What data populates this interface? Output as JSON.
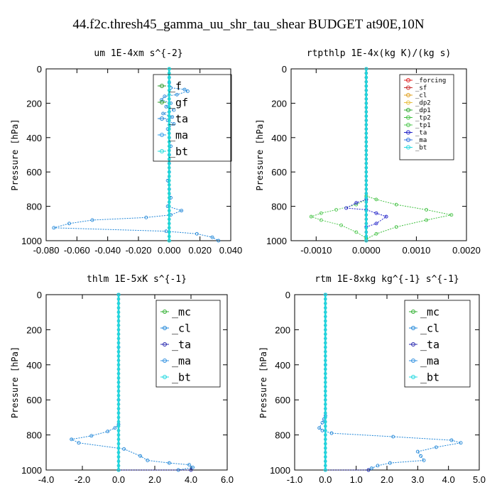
{
  "figure_title": "44.f2c.thresh45_gamma_uu_shr_tau_shear  BUDGET at90E,10N",
  "chart_data": [
    {
      "type": "line",
      "title": "um   1E-4xm s^{-2}",
      "ylabel": "Pressure [hPa]",
      "xlim": [
        -0.08,
        0.04
      ],
      "ylim": [
        1000,
        0
      ],
      "xticks": [
        -0.08,
        -0.06,
        -0.04,
        -0.02,
        0.0,
        0.02,
        0.04
      ],
      "xtick_labels": [
        "-0.080",
        "-0.060",
        "-0.040",
        "-0.020",
        "0.000",
        "0.020",
        "0.040"
      ],
      "yticks": [
        0,
        200,
        400,
        600,
        800,
        1000
      ],
      "ytick_labels": [
        "0",
        "200",
        "400",
        "600",
        "800",
        "1000"
      ],
      "legend": [
        "_f",
        "_gf",
        "_ta",
        "_ma",
        "_bt"
      ],
      "legend_placement": "top-right",
      "series": [
        {
          "name": "_f",
          "color": "#2b9c2b",
          "x": [
            0.0,
            0.0
          ],
          "y": [
            0,
            1000
          ]
        },
        {
          "name": "_gf",
          "color": "#2f9e2f",
          "x": [
            0.0,
            0.0
          ],
          "y": [
            0,
            1000
          ]
        },
        {
          "name": "_ta",
          "color": "#1f86d8",
          "x": [
            0.0,
            0.0,
            0.0,
            0.001,
            0.01,
            0.012,
            0.005,
            -0.003,
            -0.005,
            0.001,
            -0.002,
            0.003,
            -0.004,
            0.002,
            -0.001,
            0.003,
            -0.001,
            0.0,
            0.001,
            0.0,
            0.0,
            0.0,
            -0.001,
            0.0,
            0.001,
            -0.001,
            0.008,
            0.001,
            -0.015,
            -0.05,
            -0.065,
            -0.075,
            -0.002,
            0.018,
            0.028,
            0.032
          ],
          "y": [
            0,
            50,
            80,
            110,
            120,
            130,
            150,
            160,
            180,
            200,
            220,
            240,
            260,
            280,
            300,
            320,
            350,
            400,
            450,
            500,
            550,
            600,
            650,
            700,
            750,
            800,
            825,
            850,
            865,
            880,
            900,
            925,
            945,
            960,
            980,
            1000
          ]
        },
        {
          "name": "_ma",
          "color": "#33a0ee",
          "x": [
            0.0,
            0.0
          ],
          "y": [
            0,
            1000
          ]
        },
        {
          "name": "_bt",
          "color": "#1fdcdc",
          "x": [
            0.0,
            0.0
          ],
          "y": [
            0,
            1000
          ]
        }
      ]
    },
    {
      "type": "line",
      "title": "rtpthlp   1E-4x(kg K)/(kg s)",
      "ylabel": "Pressure [hPa]",
      "xlim": [
        -0.0015,
        0.002
      ],
      "ylim": [
        1000,
        0
      ],
      "xticks": [
        -0.001,
        0.0,
        0.001,
        0.002
      ],
      "xtick_labels": [
        "-0.0010",
        "0.0000",
        "0.0010",
        "0.0020"
      ],
      "yticks": [
        0,
        200,
        400,
        600,
        800,
        1000
      ],
      "ytick_labels": [
        "0",
        "200",
        "400",
        "600",
        "800",
        "1000"
      ],
      "legend": [
        "_forcing",
        "_sf",
        "_cl",
        "_dp2",
        "_dp1",
        "_tp2",
        "_tp1",
        "_ta",
        "_ma",
        "_bt"
      ],
      "legend_placement": "top-right",
      "series": [
        {
          "name": "_forcing",
          "color": "#e02020",
          "x": [
            0.0,
            0.0
          ],
          "y": [
            0,
            1000
          ]
        },
        {
          "name": "_sf",
          "color": "#c82828",
          "x": [
            0.0,
            0.0
          ],
          "y": [
            0,
            1000
          ]
        },
        {
          "name": "_cl",
          "color": "#e0a020",
          "x": [
            0.0,
            0.0
          ],
          "y": [
            0,
            1000
          ]
        },
        {
          "name": "_dp2",
          "color": "#e8c040",
          "x": [
            0.0,
            0.0
          ],
          "y": [
            0,
            1000
          ]
        },
        {
          "name": "_dp1",
          "color": "#30a830",
          "x": [
            0.0,
            0.0
          ],
          "y": [
            0,
            1000
          ]
        },
        {
          "name": "_tp2",
          "color": "#40c040",
          "x": [
            0.0,
            0.0002,
            0.0006,
            0.0012,
            0.0017,
            0.0012,
            0.0006,
            0.0002,
            0.0
          ],
          "y": [
            740,
            760,
            790,
            820,
            850,
            880,
            920,
            960,
            990
          ]
        },
        {
          "name": "_tp1",
          "color": "#50c850",
          "x": [
            0.0,
            -0.0002,
            -0.0006,
            -0.0009,
            -0.0011,
            -0.0009,
            -0.0005,
            -0.0002,
            0.0
          ],
          "y": [
            760,
            790,
            820,
            840,
            860,
            880,
            910,
            950,
            985
          ]
        },
        {
          "name": "_ta",
          "color": "#2020c8",
          "x": [
            0.0,
            -0.0002,
            -0.0004,
            0.0,
            0.0002,
            0.0004,
            0.0002,
            0.0
          ],
          "y": [
            760,
            780,
            810,
            820,
            840,
            860,
            900,
            920
          ]
        },
        {
          "name": "_ma",
          "color": "#3070e0",
          "x": [
            0.0,
            0.0
          ],
          "y": [
            0,
            1000
          ]
        },
        {
          "name": "_bt",
          "color": "#20d8e0",
          "x": [
            0.0,
            0.0
          ],
          "y": [
            0,
            1000
          ]
        }
      ]
    },
    {
      "type": "line",
      "title": "thlm   1E-5xK s^{-1}",
      "ylabel": "Pressure [hPa]",
      "xlim": [
        -4.0,
        6.0
      ],
      "ylim": [
        1000,
        0
      ],
      "xticks": [
        -4.0,
        -2.0,
        0.0,
        2.0,
        4.0,
        6.0
      ],
      "xtick_labels": [
        "-4.0",
        "-2.0",
        "0.0",
        "2.0",
        "4.0",
        "6.0"
      ],
      "yticks": [
        0,
        200,
        400,
        600,
        800,
        1000
      ],
      "ytick_labels": [
        "0",
        "200",
        "400",
        "600",
        "800",
        "1000"
      ],
      "legend": [
        "_mc",
        "_cl",
        "_ta",
        "_ma",
        "_bt"
      ],
      "legend_placement": "top-right",
      "series": [
        {
          "name": "_mc",
          "color": "#30b030",
          "x": [
            0.0,
            0.0
          ],
          "y": [
            0,
            1000
          ]
        },
        {
          "name": "_cl",
          "color": "#1f86d8",
          "x": [
            0.0,
            0.0,
            0.0,
            0.0,
            -0.2,
            -0.6,
            -1.5,
            -2.6,
            -2.2,
            0.3,
            1.2,
            1.6,
            2.8,
            3.9,
            4.1,
            3.3
          ],
          "y": [
            0,
            300,
            600,
            740,
            760,
            780,
            805,
            825,
            845,
            880,
            920,
            945,
            960,
            970,
            985,
            1000
          ]
        },
        {
          "name": "_ta",
          "color": "#2a2ab0",
          "x": [
            0.0,
            0.0,
            4.0
          ],
          "y": [
            0,
            1000,
            1000
          ]
        },
        {
          "name": "_ma",
          "color": "#3090e0",
          "x": [
            0.0,
            0.0
          ],
          "y": [
            0,
            1000
          ]
        },
        {
          "name": "_bt",
          "color": "#20d8e0",
          "x": [
            0.0,
            0.0
          ],
          "y": [
            0,
            1000
          ]
        }
      ]
    },
    {
      "type": "line",
      "title": "rtm   1E-8xkg kg^{-1} s^{-1}",
      "ylabel": "Pressure [hPa]",
      "xlim": [
        -1.0,
        5.0
      ],
      "ylim": [
        1000,
        0
      ],
      "xticks": [
        -1.0,
        0.0,
        1.0,
        2.0,
        3.0,
        4.0,
        5.0
      ],
      "xtick_labels": [
        "-1.0",
        "0.0",
        "1.0",
        "2.0",
        "3.0",
        "4.0",
        "5.0"
      ],
      "yticks": [
        0,
        200,
        400,
        600,
        800,
        1000
      ],
      "ytick_labels": [
        "0",
        "200",
        "400",
        "600",
        "800",
        "1000"
      ],
      "legend": [
        "_mc",
        "_cl",
        "_ta",
        "_ma",
        "_bt"
      ],
      "legend_placement": "top-right",
      "series": [
        {
          "name": "_mc",
          "color": "#30b030",
          "x": [
            0.0,
            0.0
          ],
          "y": [
            0,
            1000
          ]
        },
        {
          "name": "_cl",
          "color": "#1f86d8",
          "x": [
            0.0,
            0.0,
            0.0,
            -0.05,
            -0.1,
            -0.2,
            -0.1,
            0.2,
            2.2,
            4.1,
            4.4,
            3.6,
            3.0,
            3.1,
            3.2,
            2.1,
            1.7,
            1.5,
            1.4
          ],
          "y": [
            0,
            400,
            690,
            710,
            730,
            760,
            775,
            790,
            810,
            830,
            845,
            870,
            895,
            920,
            945,
            960,
            975,
            990,
            1000
          ]
        },
        {
          "name": "_ta",
          "color": "#2a2ab0",
          "x": [
            0.0,
            0.0,
            1.4
          ],
          "y": [
            0,
            1000,
            1000
          ]
        },
        {
          "name": "_ma",
          "color": "#3090e0",
          "x": [
            0.0,
            0.0
          ],
          "y": [
            0,
            1000
          ]
        },
        {
          "name": "_bt",
          "color": "#20d8e0",
          "x": [
            0.0,
            0.0
          ],
          "y": [
            0,
            1000
          ]
        }
      ]
    }
  ]
}
